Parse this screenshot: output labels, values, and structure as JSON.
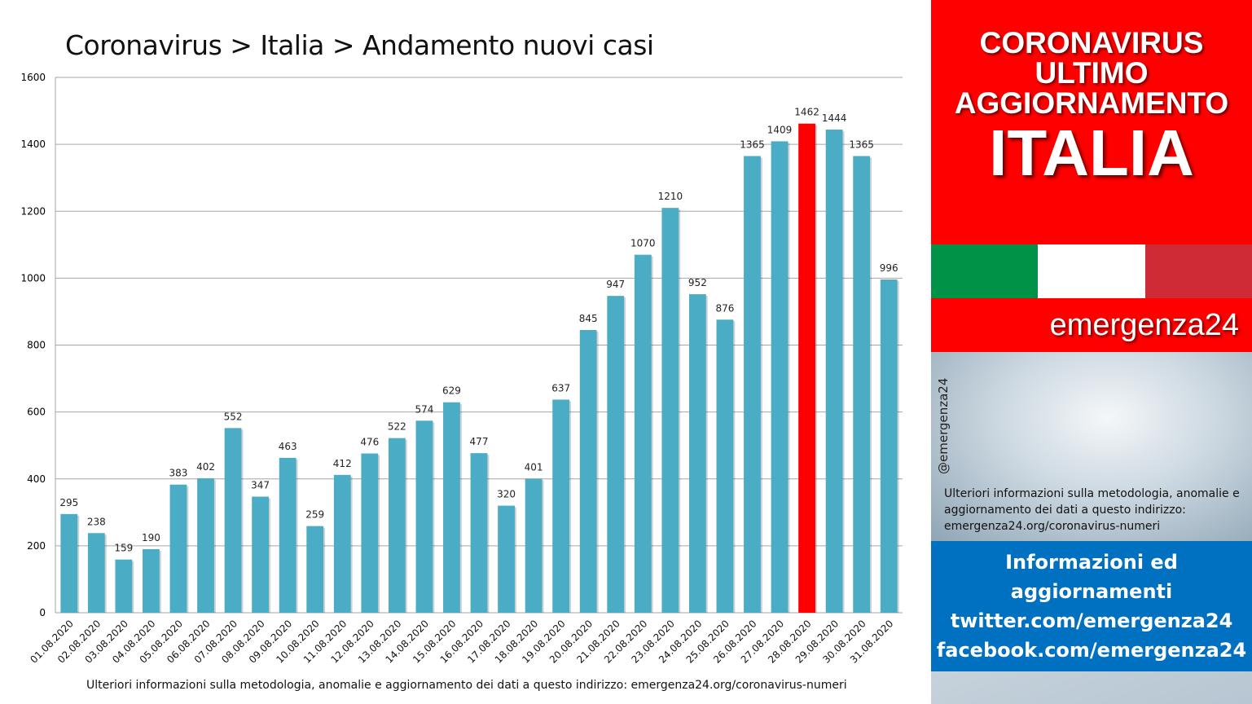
{
  "chart_data": {
    "type": "bar",
    "title": "Coronavirus > Italia > Andamento nuovi casi",
    "categories": [
      "01.08.2020",
      "02.08.2020",
      "03.08.2020",
      "04.08.2020",
      "05.08.2020",
      "06.08.2020",
      "07.08.2020",
      "08.08.2020",
      "09.08.2020",
      "10.08.2020",
      "11.08.2020",
      "12.08.2020",
      "13.08.2020",
      "14.08.2020",
      "15.08.2020",
      "16.08.2020",
      "17.08.2020",
      "18.08.2020",
      "19.08.2020",
      "20.08.2020",
      "21.08.2020",
      "22.08.2020",
      "23.08.2020",
      "24.08.2020",
      "25.08.2020",
      "26.08.2020",
      "27.08.2020",
      "28.08.2020",
      "29.08.2020",
      "30.08.2020",
      "31.08.2020"
    ],
    "values": [
      295,
      238,
      159,
      190,
      383,
      402,
      552,
      347,
      463,
      259,
      412,
      476,
      522,
      574,
      629,
      477,
      320,
      401,
      637,
      845,
      947,
      1070,
      1210,
      952,
      876,
      1365,
      1409,
      1462,
      1444,
      1365,
      996
    ],
    "highlight_index": 27,
    "bar_color": "#4bacc6",
    "highlight_color": "#ff0000",
    "ylim": [
      0,
      1600
    ],
    "yticks": [
      0,
      200,
      400,
      600,
      800,
      1000,
      1200,
      1400,
      1600
    ],
    "grid": true,
    "xlabel": "",
    "ylabel": ""
  },
  "footer": "Ulteriori informazioni sulla metodologia, anomalie e aggiornamento dei dati a questo indirizzo: emergenza24.org/coronavirus-numeri",
  "sidebar": {
    "header_lines": [
      "CORONAVIRUS",
      "ULTIMO",
      "AGGIORNAMENTO"
    ],
    "country": "ITALIA",
    "flag_colors": [
      "#009246",
      "#ffffff",
      "#ce2b37"
    ],
    "brand": "emergenza24",
    "handle": "@emergenza24",
    "info_text": "Ulteriori informazioni sulla metodologia, anomalie e aggiornamento dei dati a questo indirizzo: emergenza24.org/coronavirus-numeri",
    "contact_lines": [
      "Informazioni ed",
      "aggiornamenti",
      "twitter.com/emergenza24",
      "facebook.com/emergenza24"
    ]
  }
}
